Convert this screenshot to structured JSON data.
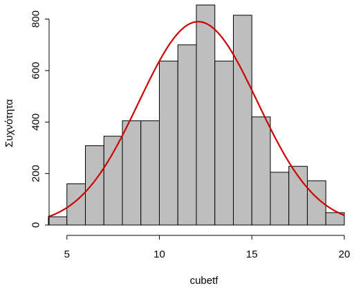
{
  "chart_data": {
    "type": "bar",
    "xlabel": "cubetf",
    "ylabel": "Συχνότητα",
    "xlim": [
      4,
      20
    ],
    "ylim": [
      0,
      850
    ],
    "x_ticks": [
      5,
      10,
      15,
      20
    ],
    "y_ticks": [
      0,
      200,
      400,
      600,
      800
    ],
    "bin_edges": [
      4,
      5,
      6,
      7,
      8,
      9,
      10,
      11,
      12,
      13,
      14,
      15,
      16,
      17,
      18,
      19,
      20
    ],
    "values": [
      32,
      160,
      308,
      345,
      405,
      405,
      637,
      700,
      855,
      637,
      815,
      420,
      205,
      228,
      172,
      48
    ],
    "bar_color": "#bebebe",
    "curve": {
      "type": "normal-density",
      "mean": 12.1,
      "peak": 790,
      "sd": 3.2,
      "color": "#cc0000"
    }
  }
}
